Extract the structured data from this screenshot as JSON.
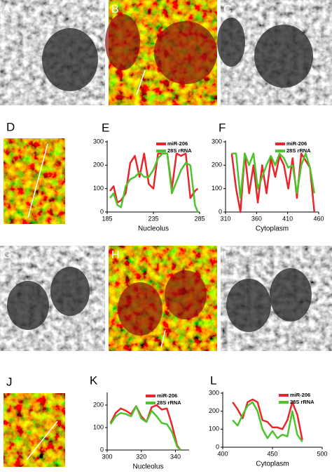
{
  "image_panels": [
    "A",
    "B",
    "C",
    "D",
    "G",
    "H",
    "I",
    "J"
  ],
  "chart_data": [
    {
      "type": "line",
      "panel": "E",
      "xlabel": "Nucleolus",
      "xlim": [
        185,
        285
      ],
      "xticks": [
        185,
        235,
        285
      ],
      "ylim": [
        0,
        300
      ],
      "yticks": [
        0,
        100,
        200,
        300
      ],
      "x": [
        188,
        192,
        196,
        200,
        205,
        210,
        215,
        220,
        225,
        230,
        235,
        240,
        245,
        250,
        255,
        260,
        265,
        270,
        275,
        280,
        283
      ],
      "series": [
        {
          "name": "miR-206",
          "color": "#e8272c",
          "values": [
            90,
            110,
            40,
            50,
            80,
            210,
            240,
            150,
            250,
            120,
            100,
            250,
            250,
            250,
            100,
            250,
            240,
            250,
            60,
            90,
            100
          ]
        },
        {
          "name": "28S rRNA",
          "color": "#4cc42b",
          "values": [
            60,
            80,
            30,
            20,
            110,
            140,
            150,
            170,
            150,
            150,
            180,
            230,
            250,
            250,
            80,
            130,
            180,
            210,
            200,
            30,
            0
          ]
        }
      ]
    },
    {
      "type": "line",
      "panel": "F",
      "xlabel": "Cytoplasm",
      "xlim": [
        310,
        460
      ],
      "xticks": [
        310,
        360,
        410,
        460
      ],
      "ylim": [
        0,
        300
      ],
      "yticks": [
        0,
        100,
        200,
        300
      ],
      "x": [
        320,
        327,
        334,
        341,
        348,
        355,
        362,
        369,
        376,
        383,
        390,
        397,
        404,
        411,
        418,
        425,
        432,
        439,
        446,
        453
      ],
      "series": [
        {
          "name": "miR-206",
          "color": "#e8272c",
          "values": [
            250,
            100,
            0,
            250,
            80,
            200,
            40,
            200,
            80,
            230,
            150,
            240,
            200,
            100,
            230,
            60,
            250,
            220,
            190,
            0
          ]
        },
        {
          "name": "28S rRNA",
          "color": "#4cc42b",
          "values": [
            250,
            250,
            60,
            250,
            200,
            250,
            100,
            150,
            200,
            240,
            200,
            250,
            230,
            190,
            200,
            80,
            200,
            250,
            190,
            80
          ]
        }
      ]
    },
    {
      "type": "line",
      "panel": "K",
      "xlabel": "Nucleolus",
      "xlim": [
        300,
        348
      ],
      "xticks": [
        300,
        320,
        340
      ],
      "ylim": [
        0,
        250
      ],
      "yticks": [
        0,
        100,
        200
      ],
      "x": [
        302,
        305,
        308,
        311,
        314,
        317,
        320,
        323,
        326,
        329,
        332,
        335,
        338,
        341,
        343
      ],
      "series": [
        {
          "name": "miR-206",
          "color": "#e8272c",
          "values": [
            120,
            165,
            185,
            175,
            160,
            195,
            150,
            125,
            190,
            200,
            180,
            185,
            110,
            20,
            0
          ]
        },
        {
          "name": "28S rRNA",
          "color": "#4cc42b",
          "values": [
            115,
            150,
            165,
            160,
            150,
            195,
            140,
            125,
            175,
            150,
            120,
            115,
            80,
            15,
            0
          ]
        }
      ]
    },
    {
      "type": "line",
      "panel": "L",
      "xlabel": "Cytoplasm",
      "xlim": [
        400,
        500
      ],
      "xticks": [
        400,
        450,
        500
      ],
      "ylim": [
        0,
        300
      ],
      "yticks": [
        0,
        100,
        200,
        300
      ],
      "x": [
        410,
        415,
        420,
        425,
        430,
        435,
        440,
        445,
        450,
        455,
        460,
        465,
        470,
        475,
        480
      ],
      "series": [
        {
          "name": "miR-206",
          "color": "#e8272c",
          "values": [
            250,
            210,
            160,
            250,
            265,
            250,
            150,
            140,
            110,
            110,
            100,
            150,
            250,
            180,
            40
          ]
        },
        {
          "name": "28S rRNA",
          "color": "#4cc42b",
          "values": [
            150,
            120,
            180,
            230,
            250,
            200,
            100,
            50,
            90,
            50,
            70,
            60,
            200,
            70,
            30
          ]
        }
      ]
    }
  ]
}
